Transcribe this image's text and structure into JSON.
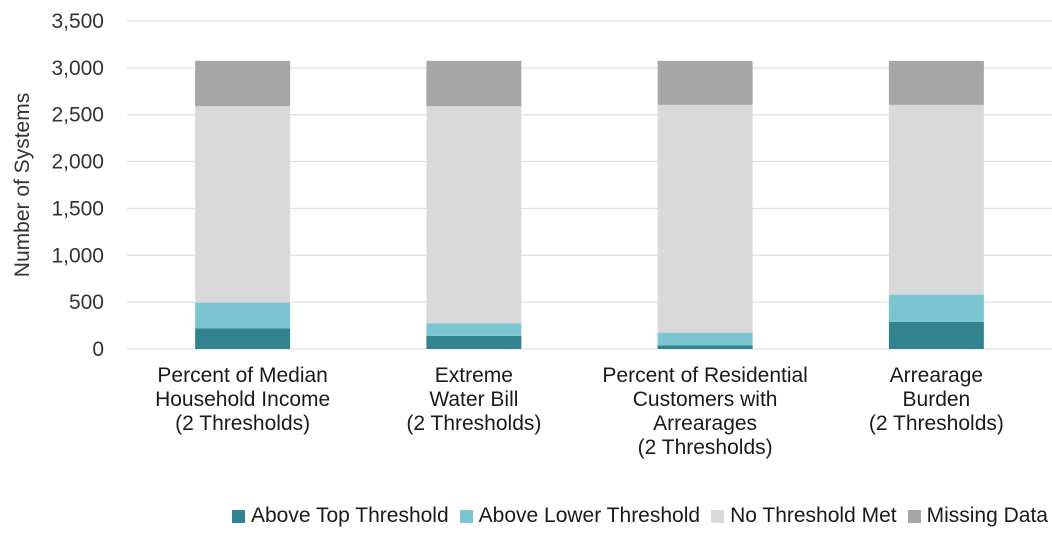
{
  "chart_data": {
    "type": "bar",
    "stacked": true,
    "categories": [
      [
        "Percent of Median",
        "Household Income",
        "(2 Thresholds)"
      ],
      [
        "Extreme",
        "Water Bill",
        "(2 Thresholds)"
      ],
      [
        "Percent of Residential",
        "Customers with",
        "Arrearages",
        "(2 Thresholds)"
      ],
      [
        "Arrearage",
        "Burden",
        "(2 Thresholds)"
      ]
    ],
    "series": [
      {
        "name": "Above Top Threshold",
        "color": "#31838f",
        "values": [
          220,
          140,
          40,
          290
        ]
      },
      {
        "name": "Above Lower Threshold",
        "color": "#7ac5d0",
        "values": [
          275,
          135,
          135,
          290
        ]
      },
      {
        "name": "No Threshold Met",
        "color": "#d9d9d9",
        "values": [
          2095,
          2315,
          2430,
          2025
        ]
      },
      {
        "name": "Missing Data",
        "color": "#a6a6a6",
        "values": [
          485,
          485,
          470,
          470
        ]
      }
    ],
    "xlabel": "",
    "ylabel": "Number of Systems",
    "ylim": [
      0,
      3500
    ],
    "yticks": [
      "0",
      "500",
      "1,000",
      "1,500",
      "2,000",
      "2,500",
      "3,000",
      "3,500"
    ],
    "grid": true,
    "legend_position": "bottom"
  }
}
